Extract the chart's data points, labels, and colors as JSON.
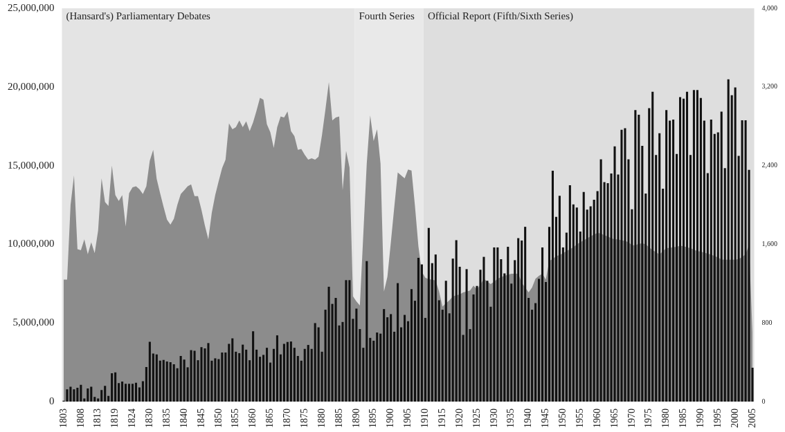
{
  "chart_data": {
    "type": "bar",
    "categories": [
      "1803",
      null,
      null,
      null,
      null,
      "1808",
      null,
      null,
      null,
      null,
      "1813",
      null,
      null,
      null,
      null,
      "1819",
      null,
      null,
      null,
      null,
      "1824",
      null,
      null,
      null,
      null,
      "1830",
      null,
      null,
      null,
      null,
      "1835",
      null,
      null,
      null,
      null,
      "1840",
      null,
      null,
      null,
      null,
      "1845",
      null,
      null,
      null,
      null,
      "1850",
      null,
      null,
      null,
      null,
      "1855",
      null,
      null,
      null,
      null,
      "1860",
      null,
      null,
      null,
      null,
      "1865",
      null,
      null,
      null,
      null,
      "1870",
      null,
      null,
      null,
      null,
      "1875",
      null,
      null,
      null,
      null,
      "1880",
      null,
      null,
      null,
      null,
      "1885",
      null,
      null,
      null,
      null,
      "1890",
      null,
      null,
      null,
      null,
      "1895",
      null,
      null,
      null,
      null,
      "1900",
      null,
      null,
      null,
      null,
      "1905",
      null,
      null,
      null,
      null,
      "1910",
      null,
      null,
      null,
      null,
      "1915",
      null,
      null,
      null,
      null,
      "1920",
      null,
      null,
      null,
      null,
      "1925",
      null,
      null,
      null,
      null,
      "1930",
      null,
      null,
      null,
      null,
      "1935",
      null,
      null,
      null,
      null,
      "1940",
      null,
      null,
      null,
      null,
      "1945",
      null,
      null,
      null,
      null,
      "1950",
      null,
      null,
      null,
      null,
      "1955",
      null,
      null,
      null,
      null,
      "1960",
      null,
      null,
      null,
      null,
      "1965",
      null,
      null,
      null,
      null,
      "1970",
      null,
      null,
      null,
      null,
      "1975",
      null,
      null,
      null,
      null,
      "1980",
      null,
      null,
      null,
      null,
      "1985",
      null,
      null,
      null,
      null,
      "1990",
      null,
      null,
      null,
      null,
      "1995",
      null,
      null,
      null,
      null,
      "2000",
      null,
      null,
      null,
      null,
      "2005"
    ],
    "series": [
      {
        "color": "#111111",
        "values": [
          60000.0,
          780000.0,
          950000.0,
          780000.0,
          880000.0,
          1060000.0,
          200000.0,
          840000.0,
          950000.0,
          300000.0,
          200000.0,
          740000.0,
          1000000.0,
          360000.0,
          1800000.0,
          1860000.0,
          1180000.0,
          1270000.0,
          1130000.0,
          1130000.0,
          1130000.0,
          1200000.0,
          900000.0,
          1300000.0,
          2200000.0,
          3800000.0,
          3050000.0,
          3000000.0,
          2600000.0,
          2650000.0,
          2550000.0,
          2500000.0,
          2370000.0,
          2120000.0,
          2900000.0,
          2670000.0,
          2180000.0,
          3270000.0,
          3230000.0,
          2630000.0,
          3460000.0,
          3380000.0,
          3720000.0,
          2600000.0,
          2750000.0,
          2700000.0,
          3120000.0,
          3120000.0,
          3670000.0,
          4020000.0,
          3170000.0,
          3080000.0,
          3620000.0,
          3300000.0,
          2630000.0,
          4470000.0,
          3300000.0,
          2850000.0,
          2970000.0,
          3420000.0,
          2480000.0,
          3350000.0,
          4210000.0,
          3000000.0,
          3670000.0,
          3790000.0,
          3820000.0,
          3420000.0,
          2900000.0,
          2600000.0,
          3350000.0,
          3600000.0,
          3350000.0,
          4990000.0,
          4720000.0,
          3170000.0,
          5840000.0,
          7300000.0,
          6210000.0,
          6590000.0,
          4840000.0,
          5060000.0,
          7720000.0,
          7720000.0,
          5260000.0,
          5910000.0,
          4610000.0,
          3420000.0,
          8930000.0,
          4050000.0,
          3870000.0,
          4390000.0,
          4320000.0,
          5880000.0,
          5360000.0,
          5560000.0,
          4440000.0,
          7530000.0,
          4720000.0,
          5510000.0,
          5110000.0,
          7150000.0,
          6410000.0,
          9140000.0,
          8720000.0,
          5320000.0,
          11040000.0,
          8800000.0,
          9350000.0,
          6440000.0,
          5840000.0,
          7680000.0,
          5610000.0,
          9090000.0,
          10260000.0,
          8570000.0,
          4240000.0,
          8420000.0,
          4610000.0,
          6810000.0,
          7350000.0,
          8380000.0,
          9200000.0,
          7680000.0,
          6030000.0,
          9800000.0,
          9800000.0,
          9050000.0,
          8150000.0,
          9840000.0,
          7500000.0,
          8990000.0,
          10390000.0,
          10240000.0,
          11110000.0,
          6590000.0,
          5840000.0,
          6260000.0,
          7800000.0,
          9800000.0,
          7600000.0,
          11110000.0,
          14670000.0,
          11740000.0,
          13080000.0,
          9800000.0,
          10740000.0,
          13750000.0,
          12530000.0,
          12330000.0,
          10810000.0,
          13320000.0,
          12200000.0,
          12410000.0,
          12830000.0,
          13380000.0,
          15400000.0,
          13950000.0,
          13880000.0,
          14500000.0,
          16220000.0,
          14430000.0,
          17280000.0,
          17380000.0,
          15400000.0,
          12230000.0,
          18530000.0,
          18230000.0,
          16260000.0,
          13230000.0,
          18650000.0,
          19700000.0,
          15670000.0,
          17060000.0,
          13530000.0,
          18530000.0,
          17860000.0,
          17930000.0,
          15740000.0,
          19350000.0,
          19250000.0,
          19700000.0,
          15670000.0,
          19800000.0,
          19800000.0,
          19300000.0,
          17860000.0,
          14520000.0,
          17930000.0,
          17010000.0,
          17110000.0,
          18430000.0,
          14840000.0,
          20490000.0,
          19480000.0,
          19970000.0,
          15620000.0,
          17880000.0,
          17880000.0,
          14730000.0,
          2150000.0
        ]
      },
      {
        "type": "area",
        "axis": "y2",
        "color": "#8c8c8c",
        "values": [
          1240,
          1240,
          2000,
          2300,
          1550,
          1540,
          1650,
          1500,
          1620,
          1510,
          1740,
          2270,
          2030,
          1990,
          2400,
          2100,
          2040,
          2100,
          1780,
          2120,
          2180,
          2190,
          2160,
          2110,
          2190,
          2450,
          2560,
          2265,
          2120,
          1980,
          1850,
          1800,
          1860,
          2000,
          2110,
          2150,
          2190,
          2210,
          2090,
          2090,
          1950,
          1790,
          1650,
          1920,
          2100,
          2240,
          2375,
          2460,
          2830,
          2770,
          2790,
          2860,
          2790,
          2850,
          2750,
          2840,
          2960,
          3090,
          3070,
          2820,
          2740,
          2580,
          2790,
          2900,
          2890,
          2950,
          2750,
          2700,
          2560,
          2570,
          2510,
          2460,
          2475,
          2460,
          2490,
          2710,
          2970,
          3250,
          2860,
          2890,
          2900,
          2150,
          2550,
          2380,
          1070,
          1020,
          977,
          1700,
          2420,
          2910,
          2650,
          2770,
          2420,
          1120,
          1270,
          1620,
          1980,
          2330,
          2300,
          2270,
          2360,
          2350,
          1990,
          1580,
          1320,
          1260,
          1245,
          1240,
          1230,
          1120,
          966,
          1000,
          1030,
          1070,
          1080,
          1090,
          1110,
          1120,
          1130,
          1180,
          1140,
          1190,
          1250,
          1220,
          1195,
          1220,
          1250,
          1265,
          1280,
          1290,
          1300,
          1300,
          1300,
          1210,
          1160,
          1110,
          1160,
          1250,
          1280,
          1300,
          1240,
          1430,
          1450,
          1480,
          1490,
          1510,
          1530,
          1550,
          1570,
          1600,
          1620,
          1640,
          1660,
          1680,
          1700,
          1715,
          1710,
          1690,
          1680,
          1660,
          1650,
          1650,
          1640,
          1635,
          1620,
          1590,
          1590,
          1605,
          1610,
          1600,
          1570,
          1540,
          1520,
          1495,
          1530,
          1560,
          1565,
          1570,
          1575,
          1585,
          1580,
          1570,
          1560,
          1545,
          1530,
          1525,
          1515,
          1505,
          1495,
          1480,
          1465,
          1445,
          1443,
          1443,
          1443,
          1443,
          1450,
          1470,
          1500,
          1590,
          700
        ]
      }
    ],
    "ylim": [
      0,
      25000000
    ],
    "yticks": [
      0,
      {
        "value": 5000000,
        "label": "5,000,000"
      },
      {
        "value": 10000000,
        "label": "10,000,000"
      },
      {
        "value": 15000000,
        "label": "15,000,000"
      },
      {
        "value": 20000000,
        "label": "20,000,000"
      },
      {
        "value": 25000000,
        "label": "25,000,000"
      }
    ],
    "y2lim": [
      0,
      4000
    ],
    "y2ticks": [
      0,
      800,
      {
        "value": 1600,
        "label": "1,600"
      },
      {
        "value": 2400,
        "label": "2,400"
      },
      {
        "value": 3200,
        "label": "3,200"
      },
      {
        "value": 4000,
        "label": "4,000"
      }
    ],
    "bands": [
      {
        "axis": "x",
        "from": "1803",
        "to": "1890",
        "label": "(Hansard's) Parliamentary Debates",
        "color": "#e4e4e4"
      },
      {
        "axis": "x",
        "from": "1890",
        "to": "1910",
        "label": "Fourth Series",
        "color": "#e9e9e9"
      },
      {
        "axis": "x",
        "from": "1910",
        "to": "2005",
        "label": "Official Report (Fifth/Sixth Series)",
        "color": "#dedede"
      }
    ]
  }
}
